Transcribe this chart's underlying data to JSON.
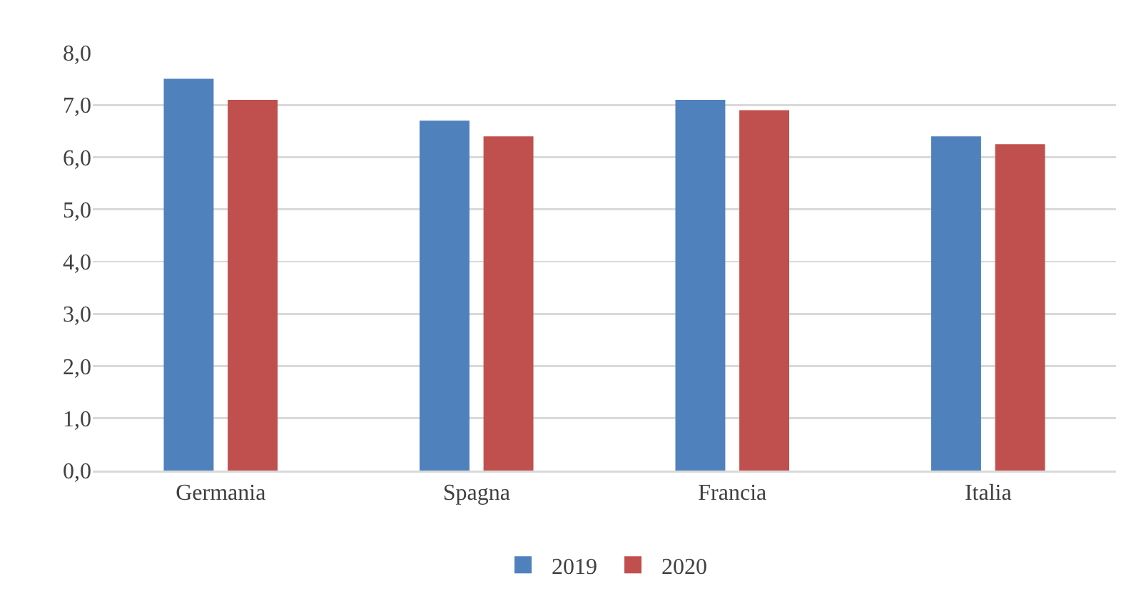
{
  "chart_data": {
    "type": "bar",
    "categories": [
      "Germania",
      "Spagna",
      "Francia",
      "Italia"
    ],
    "series": [
      {
        "name": "2019",
        "color": "#4f81bd",
        "values": [
          7.5,
          6.7,
          7.1,
          6.4
        ]
      },
      {
        "name": "2020",
        "color": "#c0504d",
        "values": [
          7.1,
          6.4,
          6.9,
          6.25
        ]
      }
    ],
    "ylim": [
      0,
      8
    ],
    "yticks": [
      {
        "value": 0,
        "label": "0,0"
      },
      {
        "value": 1,
        "label": "1,0"
      },
      {
        "value": 2,
        "label": "2,0"
      },
      {
        "value": 3,
        "label": "3,0"
      },
      {
        "value": 4,
        "label": "4,0"
      },
      {
        "value": 5,
        "label": "5,0"
      },
      {
        "value": 6,
        "label": "6,0"
      },
      {
        "value": 7,
        "label": "7,0"
      },
      {
        "value": 8,
        "label": "8,0"
      }
    ],
    "grid": "y",
    "legend": "bottom"
  }
}
